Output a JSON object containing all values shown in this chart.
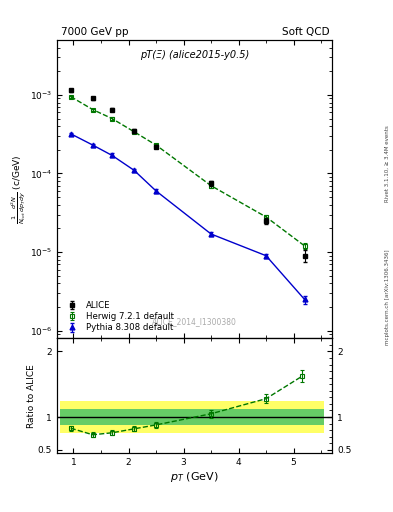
{
  "title_left": "7000 GeV pp",
  "title_right": "Soft QCD",
  "right_axis_label": "Rivet 3.1.10, ≥ 3.4M events",
  "right_axis_label2": "mcplots.cern.ch [arXiv:1306.3436]",
  "plot_label": "pT(Ξ) (alice2015-y0.5)",
  "watermark": "ALICE_2014_I1300380",
  "ylabel_main": "$\\frac{1}{N_{tot}} \\frac{d^2N}{dp_{T}dy}$ (c/GeV)",
  "ylabel_ratio": "Ratio to ALICE",
  "xlabel": "$p_T$ (GeV)",
  "alice_x": [
    0.95,
    1.35,
    1.7,
    2.1,
    2.5,
    3.5,
    4.5,
    5.2
  ],
  "alice_y": [
    0.00115,
    0.0009,
    0.00065,
    0.00035,
    0.00022,
    7.5e-05,
    2.5e-05,
    9e-06
  ],
  "alice_yerr": [
    5e-05,
    4e-05,
    3e-05,
    2e-05,
    1e-05,
    5e-06,
    2e-06,
    1.5e-06
  ],
  "herwig_x": [
    0.95,
    1.35,
    1.7,
    2.1,
    2.5,
    3.5,
    4.5,
    5.2
  ],
  "herwig_y": [
    0.00095,
    0.00065,
    0.0005,
    0.00034,
    0.00023,
    7e-05,
    2.8e-05,
    1.2e-05
  ],
  "herwig_yerr": [
    3e-05,
    2e-05,
    2e-05,
    1.5e-05,
    1e-05,
    4e-06,
    2e-06,
    1e-06
  ],
  "pythia_x": [
    0.95,
    1.35,
    1.7,
    2.1,
    2.5,
    3.5,
    4.5,
    5.2
  ],
  "pythia_y": [
    0.00032,
    0.00023,
    0.00017,
    0.00011,
    6e-05,
    1.7e-05,
    9e-06,
    2.5e-06
  ],
  "pythia_yerr": [
    1e-05,
    1e-05,
    1e-05,
    5e-06,
    3e-06,
    1e-06,
    5e-07,
    3e-07
  ],
  "ratio_herwig_x": [
    0.95,
    1.35,
    1.7,
    2.1,
    2.5,
    3.5,
    4.5,
    5.15
  ],
  "ratio_herwig_y": [
    0.83,
    0.73,
    0.76,
    0.82,
    0.88,
    1.05,
    1.28,
    1.62
  ],
  "ratio_herwig_yerr": [
    0.04,
    0.04,
    0.04,
    0.04,
    0.04,
    0.06,
    0.07,
    0.09
  ],
  "band_starts": [
    0.75,
    1.15,
    1.55,
    1.9,
    2.3,
    3.0,
    4.0,
    4.85
  ],
  "band_ends": [
    1.15,
    1.55,
    1.9,
    2.3,
    3.0,
    4.0,
    4.85,
    5.55
  ],
  "green_lo": 0.88,
  "green_hi": 1.12,
  "yellow_lo": 0.75,
  "yellow_hi": 1.25,
  "alice_color": "#000000",
  "herwig_color": "#007700",
  "pythia_color": "#0000cc",
  "band_green_color": "#66cc66",
  "band_yellow_color": "#ffff66",
  "ylim_main": [
    8e-07,
    0.005
  ],
  "ylim_ratio": [
    0.45,
    2.2
  ],
  "xlim": [
    0.7,
    5.7
  ]
}
